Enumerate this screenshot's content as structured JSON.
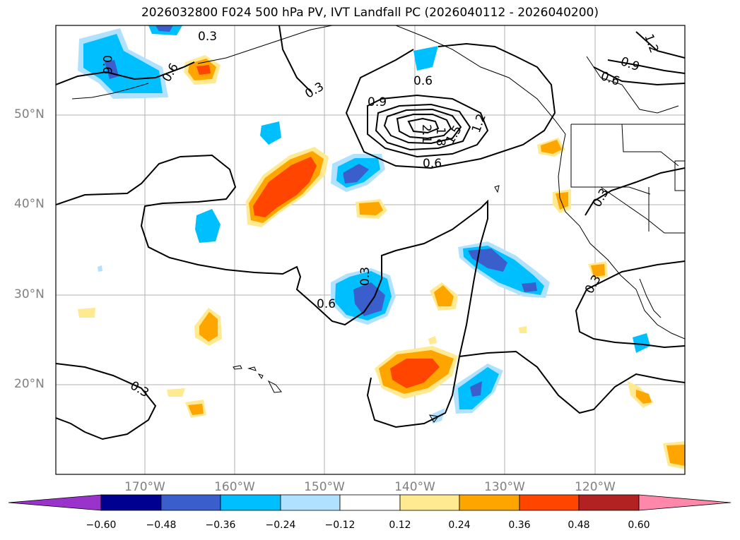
{
  "title": "2026032800 F024 500 hPa PV, IVT Landfall PC (2026040112 - 2026040200)",
  "latitude_labels": [
    "50°N",
    "40°N",
    "30°N",
    "20°N"
  ],
  "longitude_labels": [
    "170°W",
    "160°W",
    "150°W",
    "140°W",
    "130°W",
    "120°W"
  ],
  "contour_labels": [
    "0.3",
    "0.6",
    "0.9",
    "1.2",
    "1.5",
    "1.8",
    "2.1"
  ],
  "colorbar": {
    "ticks": [
      "−0.60",
      "−0.48",
      "−0.36",
      "−0.24",
      "−0.12",
      "0.12",
      "0.24",
      "0.36",
      "0.48",
      "0.60"
    ],
    "colors": [
      "#9933cc",
      "#000090",
      "#3a5fcd",
      "#00bfff",
      "#b0e2ff",
      "#ffffff",
      "#ffe991",
      "#ffa500",
      "#ff4500",
      "#b22222",
      "#ff88aa"
    ]
  },
  "colors": {
    "contour": "#000000",
    "grid": "#b0b0b0",
    "label": "#808080"
  }
}
